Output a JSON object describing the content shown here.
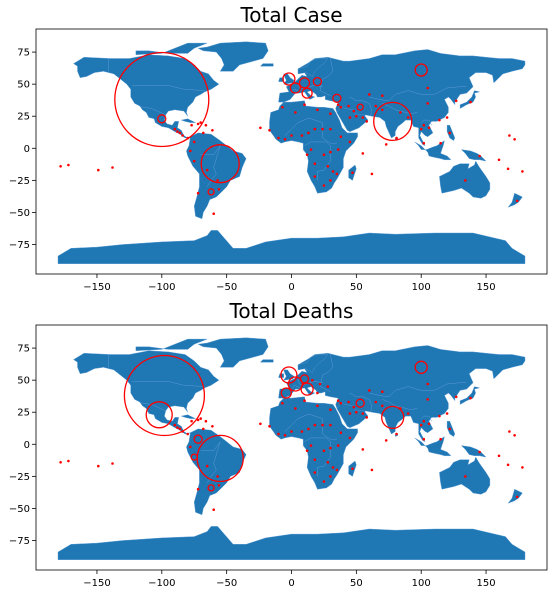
{
  "figure": {
    "panels": [
      {
        "title": "Total Case",
        "circles": [
          {
            "lon": -100,
            "lat": 38,
            "r": 47
          },
          {
            "lon": -100,
            "lat": 23,
            "r": 4
          },
          {
            "lon": -55,
            "lat": -12,
            "r": 19
          },
          {
            "lon": -62,
            "lat": -34,
            "r": 3
          },
          {
            "lon": -2,
            "lat": 54,
            "r": 6
          },
          {
            "lon": 3,
            "lat": 47,
            "r": 5
          },
          {
            "lon": 10,
            "lat": 51,
            "r": 5
          },
          {
            "lon": 12,
            "lat": 43,
            "r": 5
          },
          {
            "lon": 20,
            "lat": 52,
            "r": 4
          },
          {
            "lon": 35,
            "lat": 39,
            "r": 4
          },
          {
            "lon": 78,
            "lat": 21,
            "r": 19
          },
          {
            "lon": 100,
            "lat": 61,
            "r": 6
          },
          {
            "lon": 53,
            "lat": 32,
            "r": 3
          }
        ],
        "dots": [
          [
            -70,
            20
          ],
          [
            -66,
            18
          ],
          [
            -72,
            19
          ],
          [
            -90,
            15
          ],
          [
            -84,
            10
          ],
          [
            -80,
            8
          ],
          [
            -75,
            5
          ],
          [
            -78,
            -2
          ],
          [
            -75,
            -10
          ],
          [
            -65,
            -17
          ],
          [
            -57,
            -25
          ],
          [
            -56,
            -32
          ],
          [
            -72,
            -35
          ],
          [
            -60,
            -51
          ],
          [
            -88,
            13
          ],
          [
            -86,
            12
          ],
          [
            -17,
            14
          ],
          [
            -10,
            8
          ],
          [
            -5,
            7
          ],
          [
            0,
            10
          ],
          [
            8,
            10
          ],
          [
            13,
            12
          ],
          [
            18,
            15
          ],
          [
            24,
            15
          ],
          [
            30,
            15
          ],
          [
            38,
            9
          ],
          [
            45,
            5
          ],
          [
            36,
            -1
          ],
          [
            30,
            -3
          ],
          [
            25,
            -5
          ],
          [
            15,
            -1
          ],
          [
            12,
            -5
          ],
          [
            18,
            -12
          ],
          [
            28,
            -14
          ],
          [
            32,
            -18
          ],
          [
            35,
            -20
          ],
          [
            25,
            -29
          ],
          [
            18,
            -22
          ],
          [
            30,
            -25
          ],
          [
            47,
            -19
          ],
          [
            20,
            30
          ],
          [
            10,
            34
          ],
          [
            3,
            28
          ],
          [
            -7,
            32
          ],
          [
            30,
            27
          ],
          [
            45,
            24
          ],
          [
            50,
            25
          ],
          [
            55,
            24
          ],
          [
            58,
            21
          ],
          [
            48,
            29
          ],
          [
            38,
            32
          ],
          [
            36,
            34
          ],
          [
            44,
            33
          ],
          [
            65,
            33
          ],
          [
            70,
            30
          ],
          [
            70,
            41
          ],
          [
            60,
            42
          ],
          [
            90,
            24
          ],
          [
            84,
            28
          ],
          [
            81,
            8
          ],
          [
            100,
            15
          ],
          [
            102,
            18
          ],
          [
            106,
            16
          ],
          [
            102,
            4
          ],
          [
            115,
            4
          ],
          [
            122,
            12
          ],
          [
            127,
            37
          ],
          [
            138,
            36
          ],
          [
            105,
            35
          ],
          [
            120,
            24
          ],
          [
            114,
            22
          ],
          [
            105,
            47
          ],
          [
            134,
            -25
          ],
          [
            145,
            -6
          ],
          [
            174,
            -41
          ],
          [
            160,
            -9
          ],
          [
            167,
            -16
          ],
          [
            178,
            -18
          ],
          [
            -149,
            -17
          ],
          [
            -172,
            -13
          ],
          [
            -178,
            -14
          ],
          [
            -138,
            -15
          ],
          [
            168,
            10
          ],
          [
            172,
            7
          ],
          [
            62,
            -20
          ],
          [
            55,
            -4
          ],
          [
            73,
            3
          ],
          [
            -24,
            16
          ],
          [
            -61,
            14
          ],
          [
            -68,
            12
          ],
          [
            -77,
            18
          ]
        ]
      },
      {
        "title": "Total Deaths",
        "circles": [
          {
            "lon": -98,
            "lat": 38,
            "r": 40
          },
          {
            "lon": -102,
            "lat": 23,
            "r": 13
          },
          {
            "lon": -55,
            "lat": -11,
            "r": 23
          },
          {
            "lon": -72,
            "lat": 4,
            "r": 4
          },
          {
            "lon": -75,
            "lat": -10,
            "r": 3
          },
          {
            "lon": -62,
            "lat": -34,
            "r": 3
          },
          {
            "lon": -2,
            "lat": 54,
            "r": 8
          },
          {
            "lon": 3,
            "lat": 47,
            "r": 7
          },
          {
            "lon": 12,
            "lat": 43,
            "r": 6
          },
          {
            "lon": 10,
            "lat": 51,
            "r": 4
          },
          {
            "lon": -4,
            "lat": 40,
            "r": 5
          },
          {
            "lon": 53,
            "lat": 32,
            "r": 4
          },
          {
            "lon": 78,
            "lat": 21,
            "r": 11
          },
          {
            "lon": 100,
            "lat": 60,
            "r": 6
          }
        ],
        "dots": [
          [
            -70,
            20
          ],
          [
            -66,
            18
          ],
          [
            -72,
            19
          ],
          [
            -90,
            15
          ],
          [
            -84,
            10
          ],
          [
            -80,
            8
          ],
          [
            -78,
            -2
          ],
          [
            -65,
            -17
          ],
          [
            -57,
            -25
          ],
          [
            -56,
            -32
          ],
          [
            -72,
            -35
          ],
          [
            -60,
            -51
          ],
          [
            -88,
            13
          ],
          [
            -86,
            12
          ],
          [
            -17,
            14
          ],
          [
            -10,
            8
          ],
          [
            -5,
            7
          ],
          [
            0,
            10
          ],
          [
            8,
            10
          ],
          [
            13,
            12
          ],
          [
            18,
            15
          ],
          [
            24,
            15
          ],
          [
            30,
            15
          ],
          [
            38,
            9
          ],
          [
            45,
            5
          ],
          [
            36,
            -1
          ],
          [
            30,
            -3
          ],
          [
            25,
            -5
          ],
          [
            15,
            -1
          ],
          [
            12,
            -5
          ],
          [
            18,
            -12
          ],
          [
            28,
            -14
          ],
          [
            32,
            -18
          ],
          [
            35,
            -20
          ],
          [
            25,
            -29
          ],
          [
            18,
            -22
          ],
          [
            30,
            -25
          ],
          [
            47,
            -19
          ],
          [
            20,
            30
          ],
          [
            10,
            34
          ],
          [
            3,
            28
          ],
          [
            -7,
            32
          ],
          [
            30,
            27
          ],
          [
            45,
            24
          ],
          [
            50,
            25
          ],
          [
            55,
            24
          ],
          [
            58,
            21
          ],
          [
            48,
            29
          ],
          [
            38,
            32
          ],
          [
            36,
            34
          ],
          [
            44,
            33
          ],
          [
            65,
            33
          ],
          [
            70,
            30
          ],
          [
            70,
            41
          ],
          [
            60,
            42
          ],
          [
            90,
            24
          ],
          [
            84,
            28
          ],
          [
            81,
            8
          ],
          [
            100,
            15
          ],
          [
            102,
            18
          ],
          [
            106,
            16
          ],
          [
            102,
            4
          ],
          [
            115,
            4
          ],
          [
            122,
            12
          ],
          [
            127,
            37
          ],
          [
            138,
            36
          ],
          [
            105,
            35
          ],
          [
            120,
            24
          ],
          [
            114,
            22
          ],
          [
            105,
            47
          ],
          [
            134,
            -25
          ],
          [
            145,
            -6
          ],
          [
            174,
            -41
          ],
          [
            160,
            -9
          ],
          [
            167,
            -16
          ],
          [
            178,
            -18
          ],
          [
            -149,
            -17
          ],
          [
            -172,
            -13
          ],
          [
            -178,
            -14
          ],
          [
            -138,
            -15
          ],
          [
            168,
            10
          ],
          [
            172,
            7
          ],
          [
            62,
            -20
          ],
          [
            55,
            -4
          ],
          [
            73,
            3
          ],
          [
            -24,
            16
          ],
          [
            -61,
            14
          ],
          [
            -68,
            12
          ],
          [
            -77,
            18
          ],
          [
            20,
            40
          ],
          [
            28,
            45
          ],
          [
            22,
            47
          ],
          [
            16,
            50
          ]
        ]
      }
    ],
    "x_ticks": [
      "−150",
      "−100",
      "−50",
      "0",
      "50",
      "100",
      "150"
    ],
    "y_ticks": [
      "75",
      "50",
      "25",
      "0",
      "−25",
      "−50",
      "−75"
    ],
    "x_tick_values": [
      -150,
      -100,
      -50,
      0,
      50,
      100,
      150
    ],
    "y_tick_values": [
      75,
      50,
      25,
      0,
      -25,
      -50,
      -75
    ],
    "xlim": [
      -197,
      197
    ],
    "ylim": [
      -98,
      93
    ],
    "colors": {
      "land": "#1f77b4",
      "border": "#5a9bd5",
      "marker": "#ff0000",
      "frame": "#000000"
    }
  }
}
